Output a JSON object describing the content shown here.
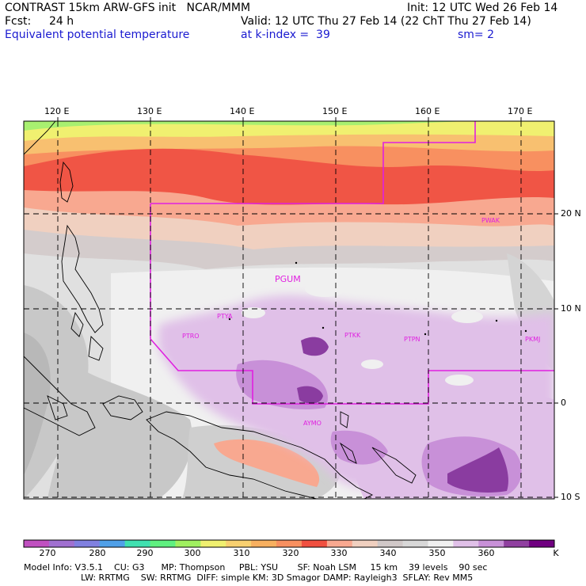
{
  "header": {
    "line1_left": "CONTRAST 15km ARW-GFS init   NCAR/MMM",
    "line1_right": "Init: 12 UTC Wed 26 Feb 14",
    "fcst_label": "Fcst:",
    "fcst_value": "24 h",
    "valid": "Valid: 12 UTC Thu 27 Feb 14 (22 ChT Thu 27 Feb 14)",
    "field_name": "Equivalent potential temperature",
    "level": "at k-index =  39",
    "smoothing": "sm= 2"
  },
  "map": {
    "lon_labels": [
      "120 E",
      "130 E",
      "140 E",
      "150 E",
      "160 E",
      "170 E"
    ],
    "lat_labels": [
      "20 N",
      "10 N",
      "0",
      "10 S"
    ],
    "stations": [
      "PGUM",
      "PTYA",
      "PTRO",
      "PTKK",
      "PTPN",
      "PKMJ",
      "PWAK",
      "AYMO"
    ]
  },
  "colorbar": {
    "labels": [
      "270",
      "280",
      "290",
      "300",
      "310",
      "320",
      "330",
      "340",
      "350",
      "360",
      "K"
    ],
    "colors": [
      "#c050c0",
      "#a070d0",
      "#8080e0",
      "#50a0e8",
      "#40e0b0",
      "#60f080",
      "#a0f060",
      "#f0f070",
      "#f8d070",
      "#f8b060",
      "#f89060",
      "#f05040",
      "#f8a890",
      "#f0d0c0",
      "#d0c8c8",
      "#d8d8d8",
      "#f0f0f0",
      "#e0c0e8",
      "#c890d8",
      "#9040a0",
      "#700080"
    ]
  },
  "footer": {
    "line1": "Model Info: V3.5.1    CU: G3      MP: Thompson     PBL: YSU       SF: Noah LSM     15 km    39 levels    90 sec",
    "line2": "LW: RRTMG    SW: RRTMG  DIFF: simple KM: 3D Smagor DAMP: Rayleigh3  SFLAY: Rev MM5"
  }
}
